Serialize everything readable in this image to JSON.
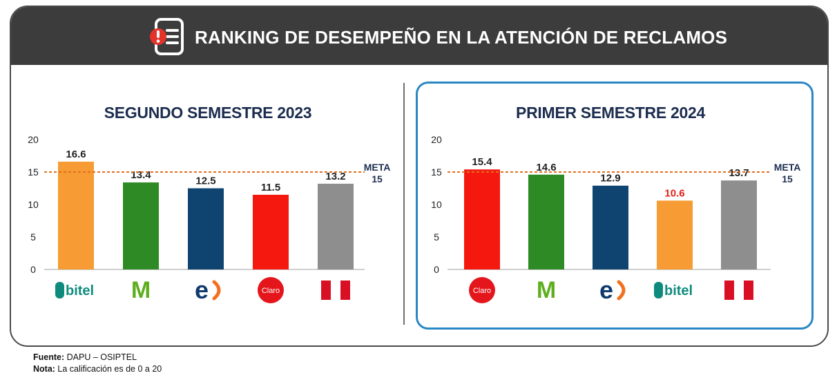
{
  "header": {
    "title": "RANKING DE DESEMPEÑO EN LA ATENCIÓN DE RECLAMOS",
    "icon": "document-alert-icon"
  },
  "chart_data": [
    {
      "type": "bar",
      "title": "SEGUNDO SEMESTRE 2023",
      "categories": [
        "bitel",
        "movistar",
        "entel",
        "claro",
        "peru-flag"
      ],
      "values": [
        16.6,
        13.4,
        12.5,
        11.5,
        13.2
      ],
      "bar_colors": [
        "#f79c34",
        "#2e8a25",
        "#0f4470",
        "#f5180f",
        "#8e8e8e"
      ],
      "label_colors": [
        "#222222",
        "#222222",
        "#222222",
        "#222222",
        "#222222"
      ],
      "ylim": [
        0,
        20
      ],
      "yticks": [
        0,
        5,
        10,
        15,
        20
      ],
      "reference_line": {
        "value": 15,
        "label": "META",
        "value_label": "15",
        "color": "#e0701c",
        "style": "dashed"
      },
      "xlabel": "",
      "ylabel": ""
    },
    {
      "type": "bar",
      "title": "PRIMER SEMESTRE 2024",
      "categories": [
        "claro",
        "movistar",
        "entel",
        "bitel",
        "peru-flag"
      ],
      "values": [
        15.4,
        14.6,
        12.9,
        10.6,
        13.7
      ],
      "bar_colors": [
        "#f5180f",
        "#2e8a25",
        "#0f4470",
        "#f79c34",
        "#8e8e8e"
      ],
      "label_colors": [
        "#222222",
        "#222222",
        "#222222",
        "#e0201a",
        "#222222"
      ],
      "ylim": [
        0,
        20
      ],
      "yticks": [
        0,
        5,
        10,
        15,
        20
      ],
      "reference_line": {
        "value": 15,
        "label": "META",
        "value_label": "15",
        "color": "#e0701c",
        "style": "dashed"
      },
      "xlabel": "",
      "ylabel": ""
    }
  ],
  "logos": {
    "bitel": {
      "text": "bitel",
      "color": "#0e8b7d"
    },
    "movistar": {
      "text": "M",
      "color": "#5fae1e"
    },
    "entel": {
      "text": "e",
      "color": "#0f3b6e",
      "accent": "#f37021"
    },
    "claro": {
      "text": "Claro",
      "color": "#e4161b"
    },
    "peru-flag": {
      "colors": [
        "#d91023",
        "#ffffff",
        "#d91023"
      ]
    }
  },
  "highlight_color": "#2a86c4",
  "footer": {
    "source_label": "Fuente:",
    "source_text": " DAPU – OSIPTEL",
    "note_label": "Nota:",
    "note_text": " La calificación es de 0 a 20"
  }
}
